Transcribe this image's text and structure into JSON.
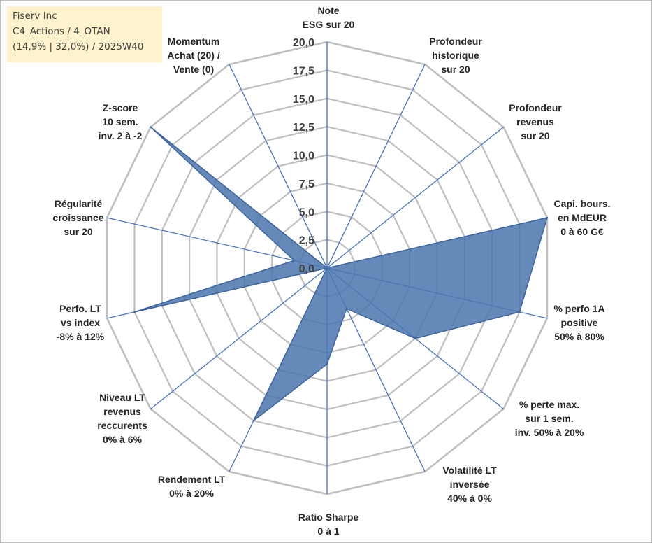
{
  "header": {
    "company": "Fiserv Inc",
    "portfolio": "C4_Actions / 4_OTAN",
    "stats": "(14,9% | 32,0%) / 2025W40"
  },
  "chart_data": {
    "type": "radar",
    "title": "Fiserv Inc",
    "rmin": 0,
    "rmax": 20,
    "ticks": [
      "0,0",
      "2,5",
      "5,0",
      "7,5",
      "10,0",
      "12,5",
      "15,0",
      "17,5",
      "20,0"
    ],
    "axes": [
      {
        "label": [
          "Note",
          "ESG sur 20"
        ],
        "value": 0
      },
      {
        "label": [
          "Profondeur",
          "historique",
          "sur 20"
        ],
        "value": 0
      },
      {
        "label": [
          "Profondeur",
          "revenus",
          "sur 20"
        ],
        "value": 0
      },
      {
        "label": [
          "Capi. bours.",
          "en MdEUR",
          "0 à 60 G€"
        ],
        "value": 20
      },
      {
        "label": [
          "% perfo 1A",
          "positive",
          "50% à 80%"
        ],
        "value": 17.5
      },
      {
        "label": [
          "% perte max.",
          "sur 1 sem.",
          "inv. 50% à 20%"
        ],
        "value": 10
      },
      {
        "label": [
          "Volatilité LT",
          "inversée",
          "40% à 0%"
        ],
        "value": 4
      },
      {
        "label": [
          "Ratio Sharpe",
          "0 à 1"
        ],
        "value": 8.5
      },
      {
        "label": [
          "Rendement LT",
          "0% à 20%"
        ],
        "value": 15
      },
      {
        "label": [
          "Niveau LT",
          "revenus",
          "reccurents",
          "0% à 6%"
        ],
        "value": 0
      },
      {
        "label": [
          "Perfo. LT",
          "vs index",
          "-8% à 12%"
        ],
        "value": 17.5
      },
      {
        "label": [
          "Régularité",
          "croissance",
          "sur 20"
        ],
        "value": 3
      },
      {
        "label": [
          "Z-score",
          "10 sem.",
          "inv. 2 à -2"
        ],
        "value": 20
      },
      {
        "label": [
          "Momentum",
          "Achat (20) /",
          "Vente (0)"
        ],
        "value": 0
      }
    ],
    "colors": {
      "grid": "#bfbfbf",
      "spoke": "#4472c4",
      "fill": "#4a76ae",
      "stroke": "#3c64a0"
    }
  }
}
